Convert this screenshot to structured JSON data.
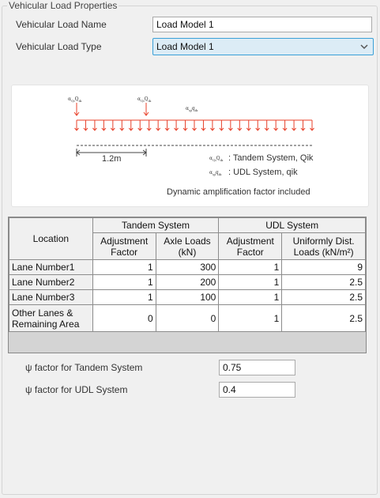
{
  "group_title": "Vehicular Load Properties",
  "fields": {
    "name_label": "Vehicular Load Name",
    "name_value": "Load Model 1",
    "type_label": "Vehicular Load Type",
    "type_value": "Load Model 1"
  },
  "diagram": {
    "tandem_symbol": "α",
    "tandem_symbol_sub": "Qi",
    "tandem_q": "Q",
    "tandem_q_sub": "ik",
    "udl_symbol": "α",
    "udl_symbol_sub": "qi",
    "udl_q": "q",
    "udl_q_sub": "ik",
    "spacing": "1.2m",
    "legend_tandem": ": Tandem System, Qik",
    "legend_udl": ": UDL System, qik",
    "note": "Dynamic amplification factor included",
    "arrow_color": "#e8402a"
  },
  "table": {
    "header": {
      "location": "Location",
      "tandem_group": "Tandem System",
      "udl_group": "UDL System",
      "tandem_adj": "Adjustment Factor",
      "tandem_axle": "Axle Loads (kN)",
      "udl_adj": "Adjustment Factor",
      "udl_load": "Uniformly Dist. Loads (kN/m²)"
    },
    "rows": [
      {
        "location": "Lane Number1",
        "tandem_adj": "1",
        "axle": "300",
        "udl_adj": "1",
        "udl": "9"
      },
      {
        "location": "Lane Number2",
        "tandem_adj": "1",
        "axle": "200",
        "udl_adj": "1",
        "udl": "2.5"
      },
      {
        "location": "Lane Number3",
        "tandem_adj": "1",
        "axle": "100",
        "udl_adj": "1",
        "udl": "2.5"
      },
      {
        "location": "Other Lanes & Remaining Area",
        "tandem_adj": "0",
        "axle": "0",
        "udl_adj": "1",
        "udl": "2.5"
      }
    ]
  },
  "psi": {
    "tandem_label": "ψ factor for Tandem System",
    "tandem_value": "0.75",
    "udl_label": "ψ factor for UDL System",
    "udl_value": "0.4"
  },
  "icons": {
    "dropdown": "chevron-down-icon"
  }
}
